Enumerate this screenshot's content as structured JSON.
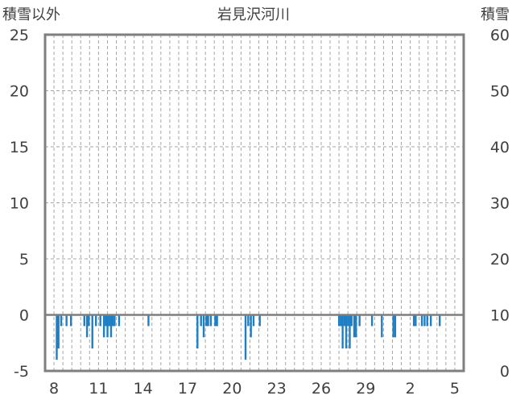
{
  "chart_data": {
    "type": "bar",
    "title": "岩見沢河川",
    "left_axis_label": "積雪以外",
    "right_axis_label": "積雪",
    "left_ylim": [
      -5,
      25
    ],
    "left_ticks": [
      "25",
      "20",
      "15",
      "10",
      "5",
      "0",
      "-5"
    ],
    "right_ylim": [
      0,
      60
    ],
    "right_ticks": [
      "60",
      "50",
      "40",
      "30",
      "20",
      "10",
      "0"
    ],
    "x_tick_labels": [
      "8",
      "11",
      "14",
      "17",
      "20",
      "23",
      "26",
      "29",
      "2",
      "5"
    ],
    "grid": true,
    "bar_color": "#1f7fc4",
    "series": [
      {
        "values": [
          [
            1.2,
            -4
          ],
          [
            1.4,
            -3
          ],
          [
            1.7,
            -1
          ],
          [
            2.3,
            -1
          ],
          [
            2.8,
            -1
          ],
          [
            4.3,
            -1
          ],
          [
            4.6,
            -2
          ],
          [
            4.8,
            -1
          ],
          [
            5.2,
            -3
          ],
          [
            5.6,
            -1
          ],
          [
            6.1,
            -1
          ],
          [
            6.5,
            -2
          ],
          [
            6.7,
            -1
          ],
          [
            6.9,
            -2
          ],
          [
            7.1,
            -1
          ],
          [
            7.3,
            -2
          ],
          [
            7.5,
            -1
          ],
          [
            7.7,
            -1
          ],
          [
            8.2,
            -1
          ],
          [
            11.5,
            -1
          ],
          [
            17.0,
            -3
          ],
          [
            17.4,
            -1
          ],
          [
            17.7,
            -2
          ],
          [
            18.0,
            -1
          ],
          [
            18.2,
            -1
          ],
          [
            18.5,
            -1
          ],
          [
            19.0,
            -1
          ],
          [
            19.2,
            -1
          ],
          [
            22.4,
            -4
          ],
          [
            22.7,
            -1
          ],
          [
            23.0,
            -2
          ],
          [
            23.3,
            -1
          ],
          [
            24.0,
            -1
          ],
          [
            32.9,
            -1
          ],
          [
            33.1,
            -1
          ],
          [
            33.3,
            -3
          ],
          [
            33.5,
            -1
          ],
          [
            33.7,
            -3
          ],
          [
            33.9,
            -1
          ],
          [
            34.1,
            -3
          ],
          [
            34.3,
            -1
          ],
          [
            34.6,
            -2
          ],
          [
            34.8,
            -2
          ],
          [
            35.2,
            -1
          ],
          [
            36.6,
            -1
          ],
          [
            37.7,
            -2
          ],
          [
            39.0,
            -2
          ],
          [
            39.2,
            -2
          ],
          [
            41.3,
            -1
          ],
          [
            41.5,
            -1
          ],
          [
            42.2,
            -1
          ],
          [
            42.5,
            -1
          ],
          [
            42.8,
            -1
          ],
          [
            43.2,
            -1
          ],
          [
            44.2,
            -1
          ]
        ]
      }
    ]
  }
}
